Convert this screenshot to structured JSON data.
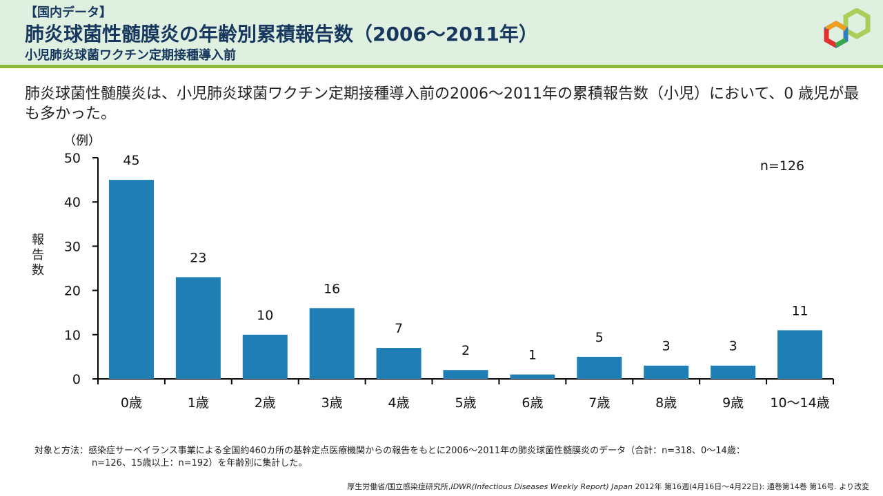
{
  "header": {
    "tag": "【国内データ】",
    "title": "肺炎球菌性髄膜炎の年齢別累積報告数（2006～2011年）",
    "subtitle": "小児肺炎球菌ワクチン定期接種導入前"
  },
  "summary": "肺炎球菌性髄膜炎は、小児肺炎球菌ワクチン定期接種導入前の2006～2011年の累積報告数（小児）において、0 歳児が最も多かった。",
  "chart_data": {
    "type": "bar",
    "categories": [
      "0歳",
      "1歳",
      "2歳",
      "3歳",
      "4歳",
      "5歳",
      "6歳",
      "7歳",
      "8歳",
      "9歳",
      "10～14歳"
    ],
    "values": [
      45,
      23,
      10,
      16,
      7,
      2,
      1,
      5,
      3,
      3,
      11
    ],
    "ylabel": "報告数",
    "yunit": "（例）",
    "ylim": [
      0,
      50
    ],
    "yticks": [
      0,
      10,
      20,
      30,
      40,
      50
    ],
    "annotation": "n=126",
    "bar_color": "#1f7fb4",
    "grid": false
  },
  "footnote": {
    "line1": "対象と方法：感染症サーベイランス事業による全国約460カ所の基幹定点医療機関からの報告をもとに2006～2011年の肺炎球菌性髄膜炎のデータ（合計：n=318、0～14歳：",
    "line2": "n=126、15歳以上：n=192）を年齢別に集計した。"
  },
  "source": {
    "pre": "厚生労働省/国立感染症研究所,",
    "italic": "IDWR(Infectious Diseases Weekly Report) Japan",
    "post": " 2012年 第16週(4月16日～4月22日): 通巻第14巻 第16号. より改変"
  },
  "colors": {
    "header_bg": "#dfefe0",
    "header_rule": "#8cb83a",
    "title": "#17375e",
    "bar": "#1f7fb4"
  },
  "logo": {
    "icon": "hexagon-logo-icon"
  }
}
